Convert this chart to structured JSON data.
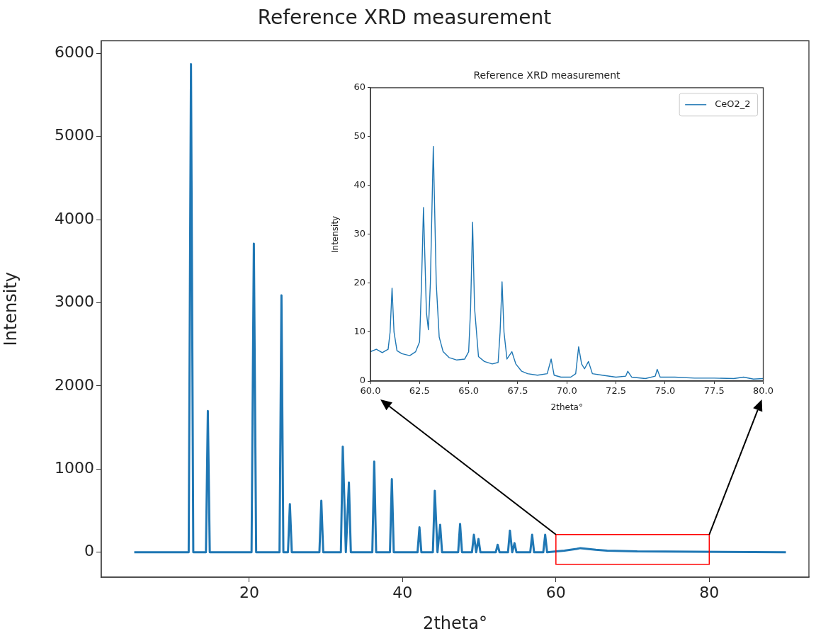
{
  "chart_data": [
    {
      "type": "line",
      "title": "Reference XRD measurement",
      "xlabel": "2theta°",
      "ylabel": "Intensity",
      "xlim": [
        0.7,
        93
      ],
      "xticks": [
        20,
        40,
        60,
        80
      ],
      "ylim": [
        -300,
        6150
      ],
      "yticks": [
        0,
        1000,
        2000,
        3000,
        4000,
        5000,
        6000
      ],
      "marker": "none",
      "line_style": "solid",
      "series": [
        {
          "color": "#1f77b4",
          "x": [
            5,
            12.1,
            12.4,
            12.7,
            14.35,
            14.6,
            14.85,
            20.3,
            20.6,
            20.9,
            23.95,
            24.2,
            24.45,
            25.05,
            25.3,
            25.55,
            29.15,
            29.4,
            29.65,
            31.95,
            32.2,
            32.6,
            33.0,
            33.25,
            36.05,
            36.3,
            36.55,
            38.35,
            38.6,
            38.85,
            41.95,
            42.2,
            42.45,
            43.95,
            44.2,
            44.55,
            44.9,
            45.15,
            47.25,
            47.5,
            47.75,
            49.05,
            49.3,
            49.6,
            49.9,
            50.15,
            52.15,
            52.4,
            52.65,
            53.75,
            54.0,
            54.3,
            54.6,
            54.85,
            56.65,
            56.9,
            57.15,
            58.35,
            58.6,
            58.85,
            61.1,
            62.7,
            63.2,
            65.2,
            66.7,
            70.6,
            90
          ],
          "values": [
            0,
            0,
            5870,
            0,
            0,
            1700,
            0,
            0,
            3710,
            0,
            0,
            3090,
            0,
            0,
            580,
            0,
            0,
            620,
            0,
            0,
            1270,
            0,
            840,
            0,
            0,
            1090,
            0,
            0,
            880,
            0,
            0,
            300,
            0,
            0,
            740,
            0,
            330,
            0,
            0,
            340,
            0,
            0,
            210,
            0,
            160,
            0,
            0,
            90,
            0,
            0,
            260,
            0,
            110,
            0,
            0,
            210,
            0,
            0,
            210,
            0,
            20,
            40,
            50,
            30,
            20,
            10,
            0
          ]
        }
      ]
    },
    {
      "type": "line",
      "title": "Reference XRD measurement",
      "xlabel": "2theta°",
      "ylabel": "Intensity",
      "xlim": [
        60,
        80
      ],
      "xticks": [
        {
          "value": 60,
          "label": "60.0"
        },
        {
          "value": 62.5,
          "label": "62.5"
        },
        {
          "value": 65,
          "label": "65.0"
        },
        {
          "value": 67.5,
          "label": "67.5"
        },
        {
          "value": 70,
          "label": "70.0"
        },
        {
          "value": 72.5,
          "label": "72.5"
        },
        {
          "value": 75,
          "label": "75.0"
        },
        {
          "value": 77.5,
          "label": "77.5"
        },
        {
          "value": 80,
          "label": "80.0"
        }
      ],
      "ylim": [
        0,
        60
      ],
      "yticks": [
        0,
        10,
        20,
        30,
        40,
        50,
        60
      ],
      "marker": "none",
      "line_style": "solid",
      "legend": "top right",
      "series": [
        {
          "name": "CeO2_2",
          "color": "#1f77b4",
          "x": [
            60.0,
            60.3,
            60.6,
            60.9,
            61.0,
            61.1,
            61.2,
            61.35,
            61.6,
            62.0,
            62.3,
            62.5,
            62.6,
            62.7,
            62.85,
            62.95,
            63.05,
            63.2,
            63.35,
            63.5,
            63.7,
            64.0,
            64.4,
            64.8,
            65.0,
            65.1,
            65.2,
            65.3,
            65.5,
            65.8,
            66.2,
            66.5,
            66.6,
            66.7,
            66.8,
            66.95,
            67.2,
            67.4,
            67.7,
            68.0,
            68.5,
            69.0,
            69.2,
            69.35,
            69.7,
            70.2,
            70.45,
            70.6,
            70.75,
            70.9,
            71.1,
            71.3,
            71.8,
            72.5,
            73.0,
            73.1,
            73.3,
            74.0,
            74.5,
            74.6,
            74.75,
            75.5,
            76.5,
            77.5,
            78.5,
            79.0,
            79.5,
            80.0
          ],
          "values": [
            6,
            6.5,
            5.8,
            6.5,
            10,
            19,
            10,
            6.2,
            5.6,
            5.2,
            6,
            8,
            20,
            35.5,
            14,
            10.5,
            20,
            48,
            20,
            9,
            6,
            4.8,
            4.3,
            4.5,
            6,
            15,
            32.5,
            15,
            5,
            4,
            3.5,
            3.8,
            10,
            20.3,
            10,
            4.5,
            6,
            3.5,
            2,
            1.5,
            1.2,
            1.5,
            4.5,
            1.2,
            0.8,
            0.8,
            1.5,
            7,
            3.5,
            2.5,
            4,
            1.5,
            1.2,
            0.8,
            1,
            2,
            0.8,
            0.5,
            1,
            2.4,
            0.8,
            0.8,
            0.6,
            0.6,
            0.5,
            0.8,
            0.4,
            0.5
          ]
        }
      ]
    }
  ]
}
